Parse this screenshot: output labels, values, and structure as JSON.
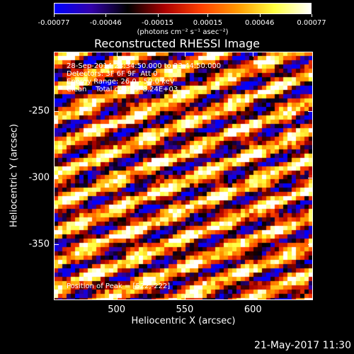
{
  "colorbar": {
    "ticks": [
      "-0.00077",
      "-0.00046",
      "-0.00015",
      "0.00015",
      "0.00046",
      "0.00077"
    ],
    "tick_values": [
      -0.00077,
      -0.00046,
      -0.00015,
      0.00015,
      0.00046,
      0.00077
    ],
    "units": "(photons cm⁻² s⁻¹ asec⁻²)",
    "colors": [
      "#0000ff",
      "#3300aa",
      "#000000",
      "#aa0000",
      "#ff4000",
      "#ff9900",
      "#ffff40",
      "#ffffff"
    ]
  },
  "title": "Reconstructed RHESSI Image",
  "annotations": {
    "line1": "28-Sep-2014 23:34:50.000 to 23:44:50.000",
    "line2": "Detectors: 3F 6F 9F  Att 0",
    "line3": "Energy Range: 26.0 - 50.0 keV",
    "line4": "Clean    Total counts: 8.24E+03",
    "peak": "Position of Peak = [522,-222]"
  },
  "axes": {
    "xlabel": "Heliocentric X (arcsec)",
    "ylabel": "Heliocentric Y (arcsec)",
    "xticks": [
      "500",
      "550",
      "600"
    ],
    "xtick_values": [
      500,
      550,
      600
    ],
    "yticks": [
      "-250",
      "-300",
      "-350"
    ],
    "ytick_values": [
      -250,
      -300,
      -350
    ],
    "xlim": [
      454,
      644
    ],
    "ylim": [
      -392,
      -205
    ]
  },
  "datestamp": "21-May-2017 11:30"
}
